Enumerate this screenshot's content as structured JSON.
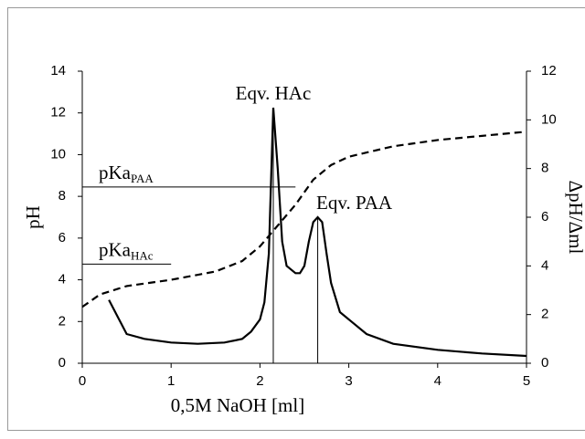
{
  "chart_data": {
    "type": "line",
    "x_label": "0,5M NaOH [ml]",
    "y_label": "pH",
    "y2_label": "ΔpH/Δml",
    "xlim": [
      0,
      5
    ],
    "xticks": [
      0,
      1,
      2,
      3,
      4,
      5
    ],
    "ylim": [
      0,
      14
    ],
    "yticks": [
      0,
      2,
      4,
      6,
      8,
      10,
      12,
      14
    ],
    "y2lim": [
      0,
      12
    ],
    "y2ticks": [
      0,
      2,
      4,
      6,
      8,
      10,
      12
    ],
    "series": [
      {
        "name": "pH",
        "color": "#000000",
        "dashed": true,
        "x": [
          0,
          0.2,
          0.5,
          1,
          1.5,
          1.8,
          2,
          2.2,
          2.4,
          2.5,
          2.6,
          2.8,
          3,
          3.5,
          4,
          4.5,
          5
        ],
        "values": [
          2.7,
          3.3,
          3.7,
          4.0,
          4.4,
          4.9,
          5.6,
          6.6,
          7.6,
          8.2,
          8.8,
          9.5,
          9.9,
          10.4,
          10.7,
          10.9,
          11.1
        ]
      },
      {
        "name": "ΔpH/Δml",
        "color": "#000000",
        "dashed": false,
        "axis": "y2",
        "x": [
          0.3,
          0.5,
          0.7,
          1,
          1.3,
          1.6,
          1.8,
          1.9,
          2.0,
          2.05,
          2.1,
          2.15,
          2.2,
          2.25,
          2.3,
          2.4,
          2.45,
          2.5,
          2.55,
          2.6,
          2.65,
          2.7,
          2.75,
          2.8,
          2.9,
          3.2,
          3.5,
          4,
          4.5,
          5
        ],
        "values": [
          2.6,
          1.2,
          1.0,
          0.85,
          0.8,
          0.85,
          1.0,
          1.3,
          1.8,
          2.5,
          4.5,
          10.5,
          8,
          5,
          4,
          3.7,
          3.7,
          4,
          5,
          5.8,
          6,
          5.8,
          4.5,
          3.3,
          2.1,
          1.2,
          0.8,
          0.55,
          0.4,
          0.3
        ]
      }
    ],
    "pka_lines": [
      {
        "label": "pKa",
        "subscript": "PAA",
        "value": 8.45,
        "x_end": 2.4
      },
      {
        "label": "pKa",
        "subscript": "HAc",
        "value": 4.75,
        "x_end": 1.0
      }
    ],
    "equivalence_points": [
      {
        "label": "Eqv. HAc",
        "x": 2.15
      },
      {
        "label": "Eqv. PAA",
        "x": 2.65
      }
    ]
  }
}
